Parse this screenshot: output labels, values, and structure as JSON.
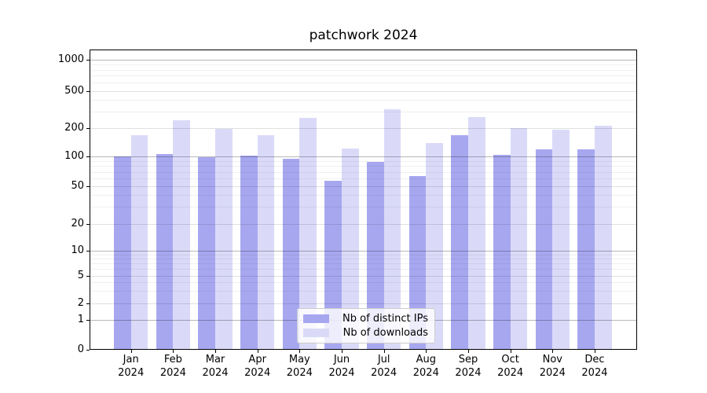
{
  "title": "patchwork 2024",
  "legend": {
    "items": [
      {
        "label": "Nb of distinct IPs",
        "color": "#a7a7f0"
      },
      {
        "label": "Nb of downloads",
        "color": "#dadaf8"
      }
    ]
  },
  "chart_data": {
    "type": "bar",
    "title": "patchwork 2024",
    "categories": [
      "Jan 2024",
      "Feb 2024",
      "Mar 2024",
      "Apr 2024",
      "May 2024",
      "Jun 2024",
      "Jul 2024",
      "Aug 2024",
      "Sep 2024",
      "Oct 2024",
      "Nov 2024",
      "Dec 2024"
    ],
    "x_tick_line1": [
      "Jan",
      "Feb",
      "Mar",
      "Apr",
      "May",
      "Jun",
      "Jul",
      "Aug",
      "Sep",
      "Oct",
      "Nov",
      "Dec"
    ],
    "x_tick_line2": "2024",
    "series": [
      {
        "name": "Nb of distinct IPs",
        "color": "#a7a7f0",
        "values": [
          100,
          107,
          99,
          103,
          95,
          57,
          88,
          63,
          168,
          104,
          120,
          120
        ]
      },
      {
        "name": "Nb of downloads",
        "color": "#dadaf8",
        "values": [
          168,
          245,
          197,
          168,
          258,
          122,
          320,
          140,
          262,
          202,
          193,
          215
        ]
      }
    ],
    "yscale": "symlog",
    "yticks": [
      0,
      1,
      2,
      5,
      10,
      20,
      50,
      100,
      200,
      500,
      1000
    ],
    "ylim": [
      0,
      1250
    ],
    "grid": true,
    "legend_position": "lower center"
  }
}
